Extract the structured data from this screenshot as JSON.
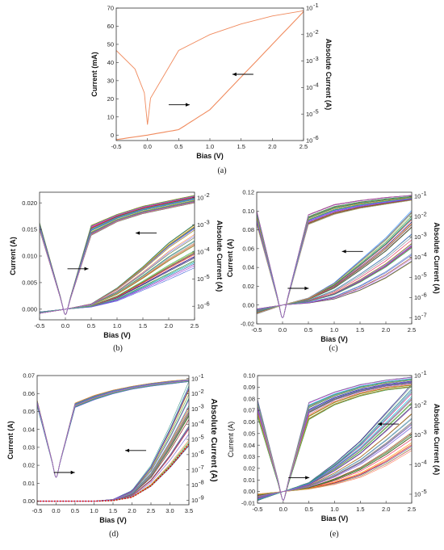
{
  "panels": [
    {
      "id": "a",
      "label": "(a)",
      "xlabel": "Bias (V)",
      "ylabel": "Current (mA)",
      "y2label": "Absolute Current (A)",
      "xticks": [
        "-0.5",
        "0.0",
        "0.5",
        "1.0",
        "1.5",
        "2.0",
        "2.5"
      ],
      "yticks": [
        "0",
        "10",
        "20",
        "30",
        "40",
        "50",
        "60",
        "70"
      ],
      "y2ticks": [
        "10",
        "10",
        "10",
        "10",
        "10",
        "10"
      ],
      "y2exps": [
        "-1",
        "-2",
        "-3",
        "-4",
        "-5",
        "-6"
      ]
    },
    {
      "id": "b",
      "label": "(b)",
      "xlabel": "Bias (V)",
      "ylabel": "Current (A)",
      "y2label": "Absolute Current (A)",
      "xticks": [
        "-0.5",
        "0.0",
        "0.5",
        "1.0",
        "1.5",
        "2.0",
        "2.5"
      ],
      "yticks": [
        "0.000",
        "0.005",
        "0.010",
        "0.015",
        "0.020"
      ],
      "y2ticks": [
        "10",
        "10",
        "10",
        "10",
        "10"
      ],
      "y2exps": [
        "-2",
        "-3",
        "-4",
        "-5",
        "-6"
      ]
    },
    {
      "id": "c",
      "label": "(c)",
      "xlabel": "Bias (V)",
      "ylabel": "Current (A)",
      "y2label": "Absolute Current (A)",
      "xticks": [
        "-0.5",
        "0.0",
        "0.5",
        "1.0",
        "1.5",
        "2.0",
        "2.5"
      ],
      "yticks": [
        "-0.02",
        "0.00",
        "0.02",
        "0.04",
        "0.06",
        "0.08",
        "0.10",
        "0.12"
      ],
      "y2ticks": [
        "10",
        "10",
        "10",
        "10",
        "10",
        "10",
        "10"
      ],
      "y2exps": [
        "-1",
        "-2",
        "-3",
        "-4",
        "-5",
        "-6",
        "-7"
      ]
    },
    {
      "id": "d",
      "label": "(d)",
      "xlabel": "Bias (V)",
      "ylabel": "Current (A)",
      "y2label": "Absolute Current (A)",
      "xticks": [
        "-0.5",
        "0.0",
        "0.5",
        "1.0",
        "1.5",
        "2.0",
        "2.5",
        "3.0",
        "3.5"
      ],
      "yticks": [
        "0.00",
        "0.01",
        "0.02",
        "0.03",
        "0.04",
        "0.05",
        "0.06",
        "0.07"
      ],
      "y2ticks": [
        "10",
        "10",
        "10",
        "10",
        "10",
        "10",
        "10",
        "10",
        "10"
      ],
      "y2exps": [
        "-1",
        "-2",
        "-3",
        "-4",
        "-5",
        "-6",
        "-7",
        "-8",
        "-9"
      ]
    },
    {
      "id": "e",
      "label": "(e)",
      "xlabel": "Bias (V)",
      "ylabel": "Current (A)",
      "y2label": "Absolute Current (A)",
      "xticks": [
        "-0.5",
        "0.0",
        "0.5",
        "1.0",
        "1.5",
        "2.0",
        "2.5"
      ],
      "yticks": [
        "-0.01",
        "0.00",
        "0.01",
        "0.02",
        "0.03",
        "0.04",
        "0.05",
        "0.06",
        "0.07",
        "0.08",
        "0.09",
        "0.10"
      ],
      "y2ticks": [
        "10",
        "10",
        "10",
        "10",
        "10"
      ],
      "y2exps": [
        "-1",
        "-2",
        "-3",
        "-4",
        "-5"
      ]
    }
  ],
  "chart_data": [
    {
      "panel": "a",
      "type": "line",
      "xlabel": "Bias (V)",
      "ylabel": "Current (mA)",
      "y2label": "Absolute Current (A)",
      "xlim": [
        -0.5,
        2.5
      ],
      "ylim": [
        -3,
        70
      ],
      "y2lim_log10": [
        -6,
        -1
      ],
      "series_color": "#f08a5d",
      "linear_iv": {
        "x": [
          -0.5,
          0,
          0.5,
          1.0,
          1.5,
          2.0,
          2.5
        ],
        "y": [
          -2.5,
          0,
          3,
          14,
          32,
          50,
          68
        ]
      },
      "log_iv": {
        "x": [
          -0.5,
          -0.2,
          -0.05,
          0,
          0.05,
          0.5,
          1.0,
          1.5,
          2.0,
          2.5
        ],
        "log10_abs_current": [
          -2.6,
          -3.3,
          -4.2,
          -5.4,
          -4.4,
          -2.6,
          -2.0,
          -1.6,
          -1.3,
          -1.1
        ]
      }
    },
    {
      "panel": "b",
      "type": "line",
      "xlabel": "Bias (V)",
      "ylabel": "Current (A)",
      "y2label": "Absolute Current (A)",
      "xlim": [
        -0.5,
        2.5
      ],
      "ylim": [
        -0.002,
        0.022
      ],
      "y2lim_log10": [
        -6.5,
        -1.8
      ],
      "curve_count": 40,
      "linear_iv_range": {
        "x": [
          -0.5,
          0,
          0.5,
          1.0,
          1.5,
          2.0,
          2.5
        ],
        "y_min": [
          -0.0005,
          0,
          0.0004,
          0.0015,
          0.0035,
          0.0055,
          0.0077
        ],
        "y_max": [
          -0.0008,
          0,
          0.001,
          0.004,
          0.008,
          0.0125,
          0.016
        ]
      },
      "log_iv_range": {
        "x": [
          -0.5,
          0,
          0.5,
          1.0,
          1.5,
          2.0,
          2.5
        ],
        "log10_min": [
          -3.2,
          -6.3,
          -3.4,
          -2.9,
          -2.6,
          -2.4,
          -2.2
        ],
        "log10_max": [
          -2.9,
          -6.3,
          -3.0,
          -2.6,
          -2.3,
          -2.1,
          -1.9
        ]
      }
    },
    {
      "panel": "c",
      "type": "line",
      "xlabel": "Bias (V)",
      "ylabel": "Current (A)",
      "y2label": "Absolute Current (A)",
      "xlim": [
        -0.5,
        2.5
      ],
      "ylim": [
        -0.02,
        0.12
      ],
      "y2lim_log10": [
        -7.3,
        -0.8
      ],
      "curve_count": 40,
      "linear_iv_range": {
        "x": [
          -0.5,
          0,
          0.5,
          1.0,
          1.5,
          2.0,
          2.5
        ],
        "y_min": [
          -0.004,
          0,
          0.002,
          0.006,
          0.015,
          0.028,
          0.045
        ],
        "y_max": [
          -0.01,
          0,
          0.008,
          0.025,
          0.05,
          0.075,
          0.105
        ]
      },
      "log_iv_range": {
        "x": [
          -0.5,
          0,
          0.5,
          1.0,
          1.5,
          2.0,
          2.5
        ],
        "log10_min": [
          -2.4,
          -7.0,
          -2.4,
          -1.9,
          -1.6,
          -1.4,
          -1.2
        ],
        "log10_max": [
          -1.7,
          -7.0,
          -1.9,
          -1.4,
          -1.2,
          -1.05,
          -0.95
        ]
      }
    },
    {
      "panel": "d",
      "type": "line",
      "xlabel": "Bias (V)",
      "ylabel": "Current (A)",
      "y2label": "Absolute Current (A)",
      "xlim": [
        -0.5,
        3.5
      ],
      "ylim": [
        -0.002,
        0.07
      ],
      "y2lim_log10": [
        -9.3,
        -0.8
      ],
      "curve_count": 40,
      "fit_series_style": "red dotted",
      "linear_iv_range": {
        "x": [
          -0.5,
          0,
          1.0,
          1.5,
          2.0,
          2.5,
          3.0,
          3.5
        ],
        "y_min": [
          0,
          0,
          0,
          0.0003,
          0.002,
          0.008,
          0.018,
          0.03
        ],
        "y_max": [
          0,
          0,
          0,
          0.001,
          0.006,
          0.02,
          0.042,
          0.067
        ]
      },
      "log_iv_range": {
        "x": [
          -0.5,
          0,
          0.5,
          1.0,
          1.5,
          2.0,
          2.5,
          3.0,
          3.5
        ],
        "log10_min": [
          -2.8,
          -7.5,
          -2.9,
          -2.4,
          -2.0,
          -1.7,
          -1.5,
          -1.35,
          -1.2
        ],
        "log10_max": [
          -2.4,
          -7.5,
          -2.6,
          -2.1,
          -1.75,
          -1.5,
          -1.3,
          -1.15,
          -1.05
        ]
      }
    },
    {
      "panel": "e",
      "type": "line",
      "xlabel": "Bias (V)",
      "ylabel": "Current (A)",
      "y2label": "Absolute Current (A)",
      "xlim": [
        -0.5,
        2.5
      ],
      "ylim": [
        -0.01,
        0.1
      ],
      "y2lim_log10": [
        -5.3,
        -1.0
      ],
      "curve_count": 40,
      "linear_iv_range": {
        "x": [
          -0.5,
          0,
          0.5,
          1.0,
          1.5,
          2.0,
          2.5
        ],
        "y_min": [
          -0.002,
          0,
          0.002,
          0.006,
          0.012,
          0.022,
          0.035
        ],
        "y_max": [
          -0.008,
          0,
          0.008,
          0.025,
          0.045,
          0.07,
          0.095
        ]
      },
      "log_iv_range": {
        "x": [
          -0.5,
          0,
          0.5,
          1.0,
          1.5,
          2.0,
          2.5
        ],
        "log10_min": [
          -2.4,
          -5.2,
          -2.5,
          -2.0,
          -1.7,
          -1.5,
          -1.4
        ],
        "log10_max": [
          -1.8,
          -5.2,
          -1.9,
          -1.55,
          -1.3,
          -1.15,
          -1.05
        ]
      }
    }
  ]
}
